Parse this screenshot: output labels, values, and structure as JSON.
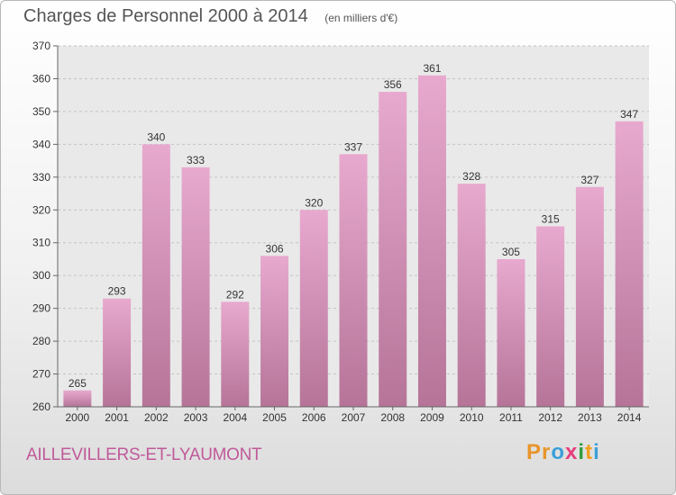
{
  "header": {
    "title": "Charges de Personnel 2000 à 2014",
    "subtitle": "(en milliers d'€)"
  },
  "footer": {
    "commune": "AILLEVILLERS-ET-LYAUMONT",
    "logo": "Proxiti"
  },
  "colors": {
    "bar_top": "#e8a9cf",
    "bar_bottom": "#b57498",
    "logo_letters": [
      "#e8952a",
      "#e8952a",
      "#3aa0d8",
      "#e63d7c",
      "#2e9d3c",
      "#f0a020",
      "#3aa0d8"
    ]
  },
  "chart_data": {
    "type": "bar",
    "categories": [
      "2000",
      "2001",
      "2002",
      "2003",
      "2004",
      "2005",
      "2006",
      "2007",
      "2008",
      "2009",
      "2010",
      "2011",
      "2012",
      "2013",
      "2014"
    ],
    "values": [
      265,
      293,
      340,
      333,
      292,
      306,
      320,
      337,
      356,
      361,
      328,
      305,
      315,
      327,
      347
    ],
    "ylim": [
      260,
      370
    ],
    "yticks": [
      260,
      270,
      280,
      290,
      300,
      310,
      320,
      330,
      340,
      350,
      360,
      370
    ],
    "grid": true,
    "data_labels": true
  }
}
